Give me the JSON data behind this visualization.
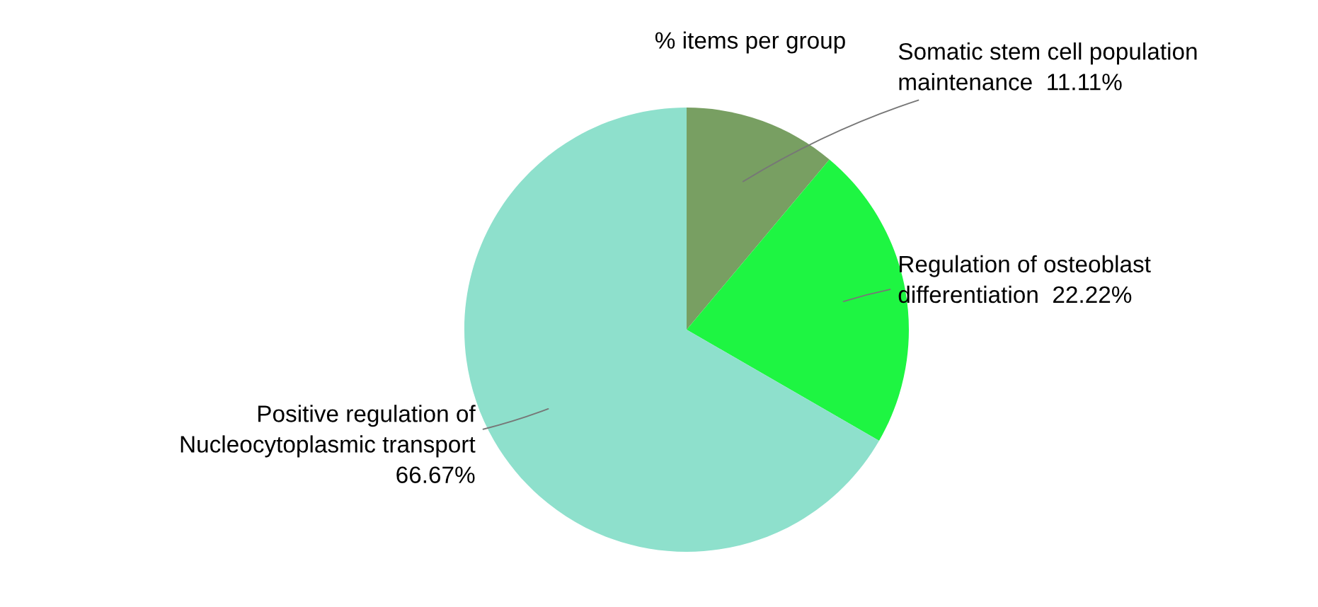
{
  "chart_data": {
    "type": "pie",
    "title": "% items per group",
    "categories": [
      "Somatic stem cell population\nmaintenance",
      "Regulation of osteoblast\ndifferentiation",
      "Positive regulation of\nNucleocytoplasmic transport"
    ],
    "values": [
      11.11,
      22.22,
      66.67
    ],
    "colors": [
      "#789f62",
      "#1ef542",
      "#8ee0cc"
    ],
    "value_labels": [
      "11.11%",
      "22.22%",
      "66.67%"
    ]
  }
}
